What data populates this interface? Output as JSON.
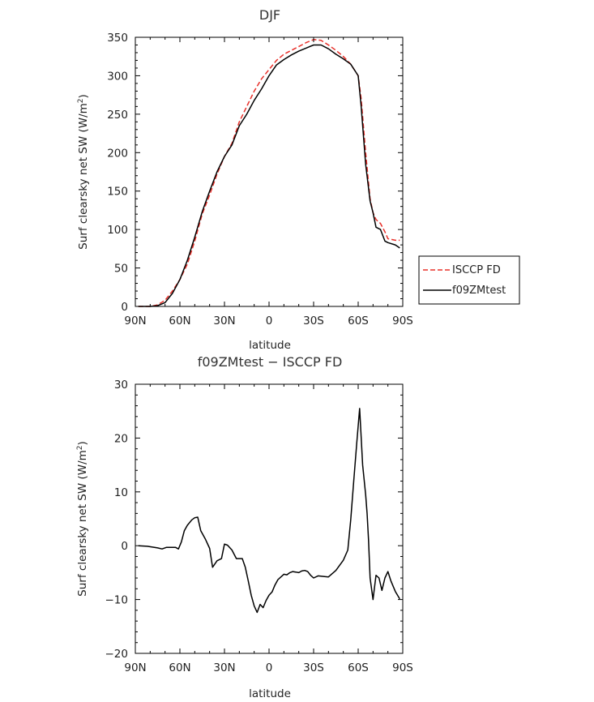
{
  "chart_data": [
    {
      "type": "line",
      "title": "DJF",
      "xlabel": "latitude",
      "ylabel_main": "Surf clearsky net SW (W/m",
      "ylabel_sup": "2",
      "ylabel_tail": ")",
      "xlim": [
        90,
        -90
      ],
      "ylim": [
        0,
        350
      ],
      "x_ticks": [
        {
          "v": 90,
          "label": "90N"
        },
        {
          "v": 60,
          "label": "60N"
        },
        {
          "v": 30,
          "label": "30N"
        },
        {
          "v": 0,
          "label": "0"
        },
        {
          "v": -30,
          "label": "30S"
        },
        {
          "v": -60,
          "label": "60S"
        },
        {
          "v": -90,
          "label": "90S"
        }
      ],
      "y_ticks": [
        0,
        50,
        100,
        150,
        200,
        250,
        300,
        350
      ],
      "legend_position": "right",
      "series": [
        {
          "name": "ISCCP FD",
          "color": "#e8302a",
          "dash": "6,3",
          "x": [
            88,
            80,
            75,
            70,
            65,
            60,
            55,
            50,
            45,
            40,
            35,
            30,
            25,
            20,
            15,
            10,
            5,
            0,
            -5,
            -10,
            -15,
            -20,
            -25,
            -30,
            -35,
            -40,
            -45,
            -50,
            -55,
            -60,
            -62,
            -65,
            -68,
            -70,
            -72,
            -75,
            -78,
            -80,
            -85,
            -88
          ],
          "values": [
            0,
            0,
            2,
            8,
            20,
            35,
            55,
            85,
            120,
            145,
            172,
            195,
            212,
            240,
            260,
            280,
            296,
            308,
            320,
            328,
            333,
            338,
            343,
            347,
            346,
            340,
            333,
            325,
            315,
            300,
            270,
            200,
            140,
            122,
            113,
            108,
            97,
            88,
            86,
            86
          ]
        },
        {
          "name": "f09ZMtest",
          "color": "#000000",
          "dash": "",
          "x": [
            88,
            80,
            75,
            70,
            65,
            60,
            55,
            50,
            45,
            40,
            35,
            30,
            25,
            20,
            15,
            10,
            5,
            0,
            -5,
            -10,
            -15,
            -20,
            -25,
            -30,
            -35,
            -40,
            -45,
            -50,
            -55,
            -60,
            -62,
            -65,
            -68,
            -70,
            -72,
            -75,
            -78,
            -80,
            -85,
            -88
          ],
          "values": [
            0,
            0,
            1,
            5,
            17,
            35,
            60,
            90,
            123,
            150,
            175,
            195,
            210,
            235,
            250,
            268,
            283,
            300,
            314,
            321,
            327,
            332,
            336,
            340,
            340,
            335,
            328,
            322,
            315,
            300,
            260,
            185,
            137,
            122,
            103,
            100,
            85,
            83,
            80,
            76
          ]
        }
      ]
    },
    {
      "type": "line",
      "title": "f09ZMtest − ISCCP FD",
      "xlabel": "latitude",
      "ylabel_main": "Surf clearsky net SW (W/m",
      "ylabel_sup": "2",
      "ylabel_tail": ")",
      "xlim": [
        90,
        -90
      ],
      "ylim": [
        -20,
        30
      ],
      "x_ticks": [
        {
          "v": 90,
          "label": "90N"
        },
        {
          "v": 60,
          "label": "60N"
        },
        {
          "v": 30,
          "label": "30N"
        },
        {
          "v": 0,
          "label": "0"
        },
        {
          "v": -30,
          "label": "30S"
        },
        {
          "v": -60,
          "label": "60S"
        },
        {
          "v": -90,
          "label": "90S"
        }
      ],
      "y_ticks": [
        -20,
        -10,
        0,
        10,
        20,
        30
      ],
      "series": [
        {
          "name": "",
          "color": "#000000",
          "dash": "",
          "x": [
            88,
            82,
            75,
            72,
            69,
            66,
            63,
            61,
            59,
            57,
            55,
            52,
            50,
            48,
            46,
            43,
            40,
            38,
            35,
            32,
            30,
            28,
            25,
            22,
            20,
            18,
            16,
            14,
            12,
            10,
            8,
            6,
            4,
            2,
            0,
            -2,
            -4,
            -6,
            -8,
            -10,
            -12,
            -14,
            -16,
            -18,
            -20,
            -22,
            -24,
            -26,
            -28,
            -30,
            -33,
            -36,
            -40,
            -45,
            -50,
            -53,
            -55,
            -57,
            -59,
            -61,
            -63,
            -65,
            -66,
            -67,
            -68,
            -70,
            -72,
            -74,
            -76,
            -78,
            -80,
            -82,
            -85,
            -88
          ],
          "values": [
            0,
            -0.1,
            -0.4,
            -0.6,
            -0.3,
            -0.3,
            -0.3,
            -0.6,
            0.7,
            2.8,
            3.8,
            4.8,
            5.2,
            5.3,
            2.8,
            1.3,
            -0.5,
            -4.0,
            -2.8,
            -2.4,
            0.3,
            0.1,
            -0.8,
            -2.4,
            -2.4,
            -2.4,
            -4.0,
            -6.5,
            -9.2,
            -11.2,
            -12.4,
            -10.9,
            -11.5,
            -10.2,
            -9.2,
            -8.6,
            -7.3,
            -6.3,
            -5.8,
            -5.3,
            -5.4,
            -5.0,
            -4.8,
            -4.9,
            -5.0,
            -4.7,
            -4.6,
            -4.8,
            -5.5,
            -6.0,
            -5.6,
            -5.7,
            -5.8,
            -4.6,
            -2.7,
            -0.8,
            4.8,
            12.0,
            19.0,
            25.5,
            15.0,
            9.5,
            6.0,
            1.0,
            -6.0,
            -10.0,
            -5.5,
            -6.0,
            -8.3,
            -6.0,
            -4.8,
            -6.5,
            -8.5,
            -9.9
          ]
        }
      ]
    }
  ]
}
